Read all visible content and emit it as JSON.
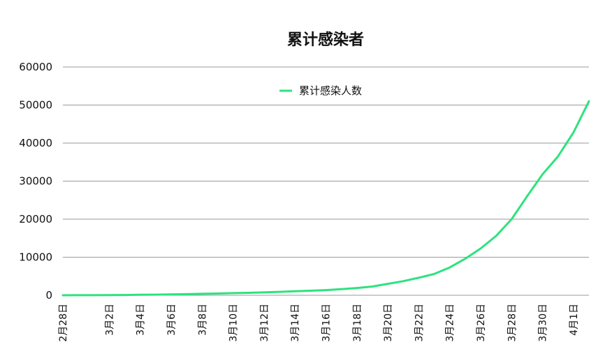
{
  "chart_data": {
    "type": "line",
    "title": "累计感染者",
    "xlabel": "",
    "ylabel": "",
    "ylim": [
      0,
      60000
    ],
    "yticks": [
      0,
      10000,
      20000,
      30000,
      40000,
      50000,
      60000
    ],
    "grid": true,
    "legend_position": "top-center",
    "x_tick_labels": [
      "2月28日",
      "3月2日",
      "3月4日",
      "3月6日",
      "3月8日",
      "3月10日",
      "3月12日",
      "3月14日",
      "3月16日",
      "3月18日",
      "3月20日",
      "3月22日",
      "3月24日",
      "3月26日",
      "3月28日",
      "3月30日",
      "4月1日"
    ],
    "x": [
      "2月28日",
      "2月29日",
      "3月1日",
      "3月2日",
      "3月3日",
      "3月4日",
      "3月5日",
      "3月6日",
      "3月7日",
      "3月8日",
      "3月9日",
      "3月10日",
      "3月11日",
      "3月12日",
      "3月13日",
      "3月14日",
      "3月15日",
      "3月16日",
      "3月17日",
      "3月18日",
      "3月19日",
      "3月20日",
      "3月21日",
      "3月22日",
      "3月23日",
      "3月24日",
      "3月25日",
      "3月26日",
      "3月27日",
      "3月28日",
      "3月29日",
      "3月30日",
      "3月31日",
      "4月1日",
      "4月2日"
    ],
    "series": [
      {
        "name": "累计感染人数",
        "color": "#2ee27f",
        "values": [
          0,
          10,
          20,
          50,
          80,
          120,
          170,
          230,
          300,
          380,
          460,
          560,
          650,
          750,
          900,
          1050,
          1200,
          1350,
          1600,
          1900,
          2300,
          3000,
          3700,
          4600,
          5600,
          7300,
          9600,
          12300,
          15600,
          20000,
          26000,
          31800,
          36500,
          42800,
          51000
        ]
      }
    ]
  }
}
